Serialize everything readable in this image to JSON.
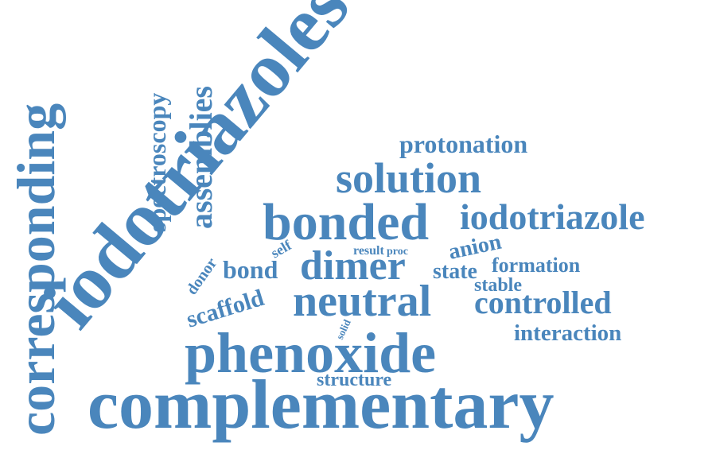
{
  "word_color": "#4a86bc",
  "words": [
    {
      "id": "complementary",
      "text": "complementary"
    },
    {
      "id": "phenoxide",
      "text": "phenoxide"
    },
    {
      "id": "iodotriazoles",
      "text": "iodotriazoles"
    },
    {
      "id": "corresponding",
      "text": "corresponding"
    },
    {
      "id": "bonded",
      "text": "bonded"
    },
    {
      "id": "iodotriazole",
      "text": "iodotriazole"
    },
    {
      "id": "neutral",
      "text": "neutral"
    },
    {
      "id": "dimer",
      "text": "dimer"
    },
    {
      "id": "solution",
      "text": "solution"
    },
    {
      "id": "assemblies",
      "text": "assemblies"
    },
    {
      "id": "spectroscopy",
      "text": "spectroscopy"
    },
    {
      "id": "protonation",
      "text": "protonation"
    },
    {
      "id": "controlled",
      "text": "controlled"
    },
    {
      "id": "interaction",
      "text": "interaction"
    },
    {
      "id": "scaffold",
      "text": "scaffold"
    },
    {
      "id": "bond",
      "text": "bond"
    },
    {
      "id": "anion",
      "text": "anion"
    },
    {
      "id": "state",
      "text": "state"
    },
    {
      "id": "formation",
      "text": "formation"
    },
    {
      "id": "stable",
      "text": "stable"
    },
    {
      "id": "structure",
      "text": "structure"
    },
    {
      "id": "donor",
      "text": "donor"
    },
    {
      "id": "self",
      "text": "self"
    },
    {
      "id": "result",
      "text": "result"
    },
    {
      "id": "proc",
      "text": "proc"
    },
    {
      "id": "solid",
      "text": "solid"
    }
  ]
}
